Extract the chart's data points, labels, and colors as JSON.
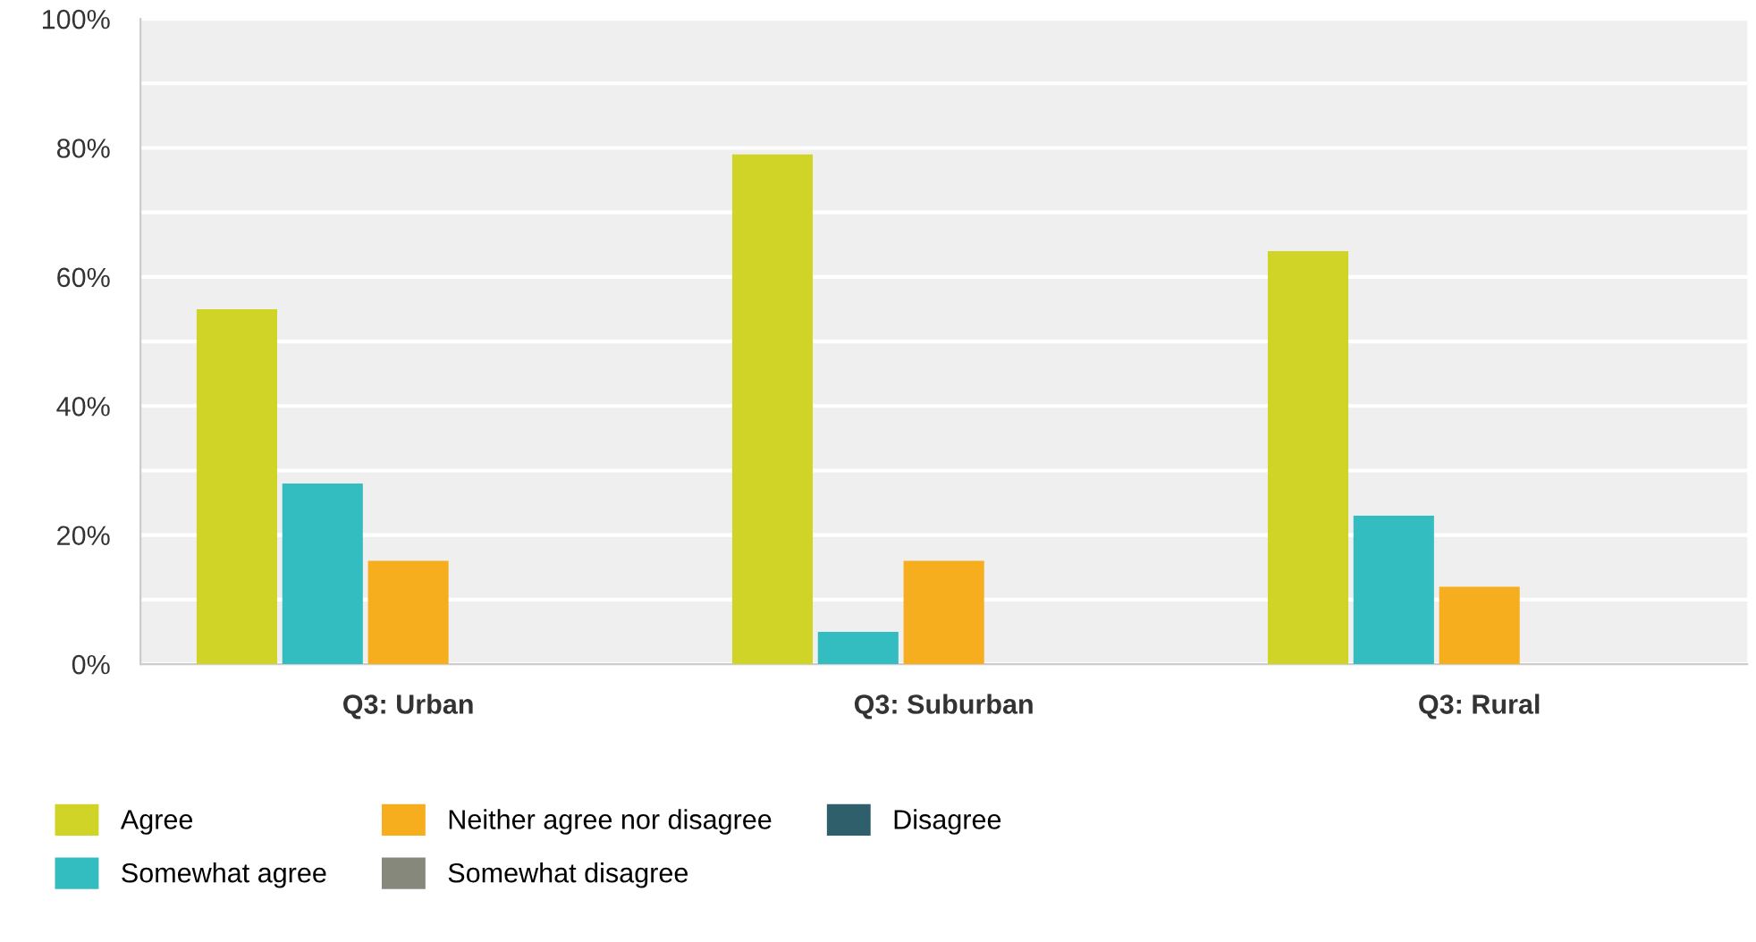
{
  "chart_data": {
    "type": "bar",
    "categories": [
      "Q3: Urban",
      "Q3: Suburban",
      "Q3: Rural"
    ],
    "series": [
      {
        "name": "Agree",
        "color": "#cfd426",
        "values": [
          55,
          79,
          64
        ]
      },
      {
        "name": "Somewhat agree",
        "color": "#34bdc0",
        "values": [
          28,
          5,
          23
        ]
      },
      {
        "name": "Neither agree nor disagree",
        "color": "#f6ae1f",
        "values": [
          16,
          16,
          12
        ]
      },
      {
        "name": "Somewhat disagree",
        "color": "#85887a",
        "values": [
          0,
          0,
          0
        ]
      },
      {
        "name": "Disagree",
        "color": "#2f5f6b",
        "values": [
          0,
          0,
          0
        ]
      }
    ],
    "ylim": [
      0,
      100
    ],
    "yticks": [
      {
        "value": 0,
        "label": "0%"
      },
      {
        "value": 10,
        "label": null
      },
      {
        "value": 20,
        "label": "20%"
      },
      {
        "value": 30,
        "label": null
      },
      {
        "value": 40,
        "label": "40%"
      },
      {
        "value": 50,
        "label": null
      },
      {
        "value": 60,
        "label": "60%"
      },
      {
        "value": 70,
        "label": null
      },
      {
        "value": 80,
        "label": "80%"
      },
      {
        "value": 90,
        "label": null
      },
      {
        "value": 100,
        "label": "100%"
      }
    ],
    "grid": "y",
    "legend": "bottom"
  }
}
